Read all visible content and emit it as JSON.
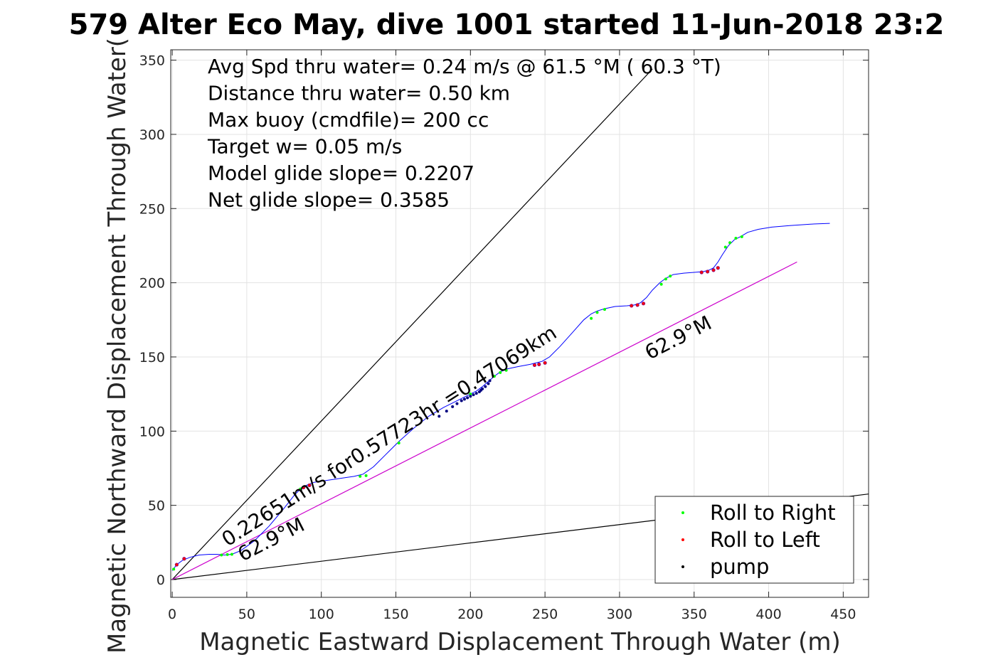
{
  "chart_data": {
    "type": "line",
    "title": "579 Alter Eco May, dive 1001 started 11-Jun-2018 23:2",
    "xlabel": "Magnetic Eastward Displacement Through Water (m)",
    "ylabel": "Magnetic Northward Displacement Through Water(",
    "xlim": [
      -1,
      467
    ],
    "ylim": [
      -12,
      357
    ],
    "xticks": [
      0,
      50,
      100,
      150,
      200,
      250,
      300,
      350,
      400,
      450
    ],
    "yticks": [
      0,
      50,
      100,
      150,
      200,
      250,
      300,
      350
    ],
    "grid": true,
    "legend_position": "bottom-right",
    "info_lines": [
      "Avg Spd thru water=  0.24 m/s @  61.5 °M ( 60.3 °T)",
      "Distance thru water=  0.50 km",
      "Max buoy (cmdfile)= 200 cc",
      "Target w= 0.05 m/s",
      "Model glide slope= 0.2207",
      "Net glide slope= 0.3585"
    ],
    "annotations": [
      {
        "text": "0.22651m/s for0.57723hr =0.47069km",
        "x": 37,
        "y": 22,
        "angle": 32.5
      },
      {
        "text": "62.9°M",
        "x": 47,
        "y": 12,
        "angle": 27
      },
      {
        "text": "62.9°M",
        "x": 320,
        "y": 148,
        "angle": 27
      }
    ],
    "series": [
      {
        "name": "track",
        "color": "#0000ff",
        "x": [
          0,
          3,
          7,
          12,
          18,
          25,
          30,
          35,
          40,
          46,
          55,
          65,
          75,
          82,
          86,
          90,
          95,
          105,
          115,
          122,
          128,
          135,
          143,
          152,
          162,
          172,
          182,
          190,
          196,
          200,
          204,
          208,
          212,
          216,
          220,
          225,
          232,
          240,
          248,
          253,
          260,
          268,
          276,
          281,
          285,
          290,
          297,
          305,
          310,
          314,
          318,
          322,
          327,
          331,
          336,
          343,
          350,
          356,
          360,
          363,
          366,
          369,
          373,
          377,
          381,
          386,
          393,
          402,
          414,
          428,
          441
        ],
        "y": [
          6,
          10,
          13,
          15,
          16.5,
          17,
          17,
          16.5,
          17,
          19.5,
          26,
          36,
          48,
          57,
          61,
          63.5,
          65.5,
          67,
          68.5,
          69.5,
          71,
          76,
          84,
          93,
          102,
          110,
          116,
          120,
          123,
          125,
          127,
          130,
          133.5,
          137,
          140,
          142,
          143.5,
          145,
          147,
          150,
          157,
          166,
          175,
          179,
          181,
          182.5,
          184,
          184.5,
          185,
          186.5,
          190,
          195,
          200,
          203,
          205.5,
          206.5,
          207,
          207.5,
          208.5,
          210,
          214,
          219,
          225,
          229,
          231,
          234,
          236,
          237.5,
          238.5,
          239.5,
          240
        ]
      },
      {
        "name": "heading-line",
        "color": "#cc00cc",
        "x": [
          0,
          419
        ],
        "y": [
          0,
          214
        ]
      },
      {
        "name": "steep-line",
        "color": "#000000",
        "x": [
          0,
          322
        ],
        "y": [
          0,
          344
        ]
      },
      {
        "name": "shallow-line",
        "color": "#000000",
        "x": [
          0,
          470
        ],
        "y": [
          0,
          58
        ]
      }
    ],
    "markers": {
      "roll_right": {
        "color": "#00ff00",
        "x": [
          1,
          33,
          37,
          40,
          86,
          126,
          130,
          152,
          200,
          216,
          220,
          224,
          281,
          285,
          290,
          328,
          331,
          334,
          371,
          374,
          378,
          382
        ],
        "y": [
          7,
          16.5,
          16.8,
          17,
          61,
          69.5,
          70,
          92,
          125,
          137,
          139.5,
          141,
          176,
          180,
          182,
          199,
          202.5,
          204.5,
          224,
          227,
          230,
          231
        ]
      },
      "roll_left": {
        "color": "#ff0000",
        "x": [
          3,
          8,
          88,
          92,
          243,
          246,
          250,
          308,
          312,
          316,
          355,
          359,
          363,
          366
        ],
        "y": [
          10,
          14,
          62,
          63.5,
          144.5,
          145,
          146,
          184.5,
          185,
          186,
          207,
          207.5,
          208.5,
          210
        ],
        "outline": "#800080"
      },
      "pump": {
        "color": "#000080",
        "x": [
          179,
          184,
          188,
          191,
          194,
          196,
          198,
          200,
          202,
          204,
          206,
          207,
          208,
          210,
          212,
          213
        ],
        "y": [
          110,
          113.5,
          116.5,
          118.5,
          120.5,
          121.5,
          122.5,
          123.5,
          124.5,
          125.5,
          126.5,
          127.5,
          128.5,
          130,
          132,
          134
        ]
      }
    },
    "legend": [
      {
        "label": "Roll to Right",
        "color": "#00ff00"
      },
      {
        "label": "Roll to Left",
        "color": "#ff0000"
      },
      {
        "label": "pump",
        "color": "#000000"
      }
    ]
  }
}
